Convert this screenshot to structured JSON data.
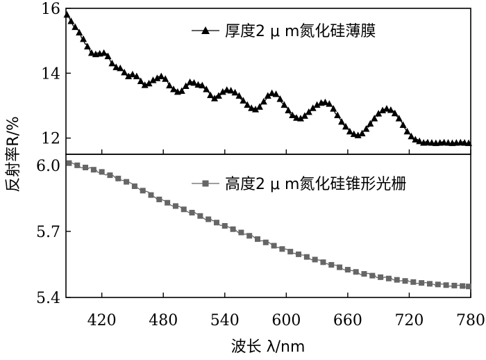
{
  "chart_data": {
    "type": "line",
    "xlabel": "波长 λ/nm",
    "ylabel": "反射率R/%",
    "xlim": [
      385,
      780
    ],
    "xticks": [
      "420",
      "480",
      "540",
      "600",
      "660",
      "720",
      "780"
    ],
    "xtick_values": [
      420,
      480,
      540,
      600,
      660,
      720,
      780
    ],
    "panels": [
      {
        "position": "top",
        "ylim": [
          11.5,
          16
        ],
        "yticks": [
          "12",
          "14",
          "16"
        ],
        "ytick_values": [
          12,
          14,
          16
        ],
        "series": [
          {
            "name": "厚度2 μ m氮化硅薄膜",
            "marker": "triangle",
            "color": "#000000",
            "x": [
              386,
              390,
              394,
              398,
              402,
              406,
              410,
              414,
              418,
              422,
              426,
              430,
              434,
              438,
              442,
              446,
              450,
              454,
              458,
              462,
              466,
              470,
              474,
              478,
              482,
              486,
              490,
              494,
              498,
              502,
              506,
              510,
              514,
              518,
              522,
              526,
              530,
              534,
              538,
              542,
              546,
              550,
              554,
              558,
              562,
              566,
              570,
              574,
              578,
              582,
              586,
              590,
              594,
              598,
              602,
              606,
              610,
              614,
              618,
              622,
              626,
              630,
              634,
              638,
              642,
              646,
              650,
              654,
              658,
              662,
              666,
              670,
              674,
              678,
              682,
              686,
              690,
              694,
              698,
              702,
              706,
              710,
              714,
              718,
              722,
              726,
              730,
              734,
              738,
              742,
              746,
              750,
              754,
              758,
              762,
              766,
              770,
              774,
              778
            ],
            "y": [
              15.8,
              15.6,
              15.42,
              15.25,
              15.05,
              14.82,
              14.62,
              14.58,
              14.6,
              14.62,
              14.52,
              14.3,
              14.18,
              14.15,
              14.02,
              13.9,
              13.96,
              13.9,
              13.75,
              13.63,
              13.68,
              13.78,
              13.84,
              13.9,
              13.82,
              13.62,
              13.5,
              13.42,
              13.45,
              13.6,
              13.72,
              13.7,
              13.64,
              13.62,
              13.5,
              13.32,
              13.22,
              13.3,
              13.42,
              13.48,
              13.46,
              13.4,
              13.3,
              13.15,
              13.02,
              12.92,
              12.88,
              12.96,
              13.12,
              13.3,
              13.38,
              13.35,
              13.2,
              13.02,
              12.85,
              12.7,
              12.62,
              12.6,
              12.68,
              12.8,
              12.92,
              13.02,
              13.08,
              13.1,
              13.05,
              12.9,
              12.7,
              12.5,
              12.35,
              12.2,
              12.12,
              12.08,
              12.14,
              12.28,
              12.44,
              12.6,
              12.75,
              12.85,
              12.9,
              12.86,
              12.76,
              12.6,
              12.4,
              12.2,
              12.05,
              11.95,
              11.9,
              11.85,
              11.86,
              11.85,
              11.84,
              11.85,
              11.86,
              11.85,
              11.84,
              11.85,
              11.86,
              11.85,
              11.84
            ]
          }
        ]
      },
      {
        "position": "bottom",
        "ylim": [
          5.4,
          6.05
        ],
        "yticks": [
          "6.0",
          "5.7",
          "5.4"
        ],
        "ytick_values": [
          6.0,
          5.7,
          5.4
        ],
        "series": [
          {
            "name": "高度2 μ m氮化硅锥形光栅",
            "marker": "square",
            "color": "#666666",
            "x": [
              388,
              396,
              404,
              412,
              420,
              428,
              436,
              444,
              452,
              460,
              468,
              476,
              484,
              492,
              500,
              508,
              516,
              524,
              532,
              540,
              548,
              556,
              564,
              572,
              580,
              588,
              596,
              604,
              612,
              620,
              628,
              636,
              644,
              652,
              660,
              668,
              676,
              684,
              692,
              700,
              708,
              716,
              724,
              732,
              740,
              748,
              756,
              764,
              772,
              778
            ],
            "y": [
              6.01,
              6.0,
              5.99,
              5.98,
              5.97,
              5.955,
              5.94,
              5.925,
              5.905,
              5.885,
              5.865,
              5.845,
              5.83,
              5.815,
              5.8,
              5.785,
              5.77,
              5.755,
              5.74,
              5.725,
              5.71,
              5.695,
              5.68,
              5.665,
              5.65,
              5.635,
              5.62,
              5.608,
              5.596,
              5.584,
              5.572,
              5.56,
              5.548,
              5.537,
              5.526,
              5.516,
              5.507,
              5.499,
              5.492,
              5.486,
              5.48,
              5.475,
              5.47,
              5.466,
              5.462,
              5.459,
              5.456,
              5.454,
              5.452,
              5.45
            ]
          }
        ]
      }
    ]
  }
}
